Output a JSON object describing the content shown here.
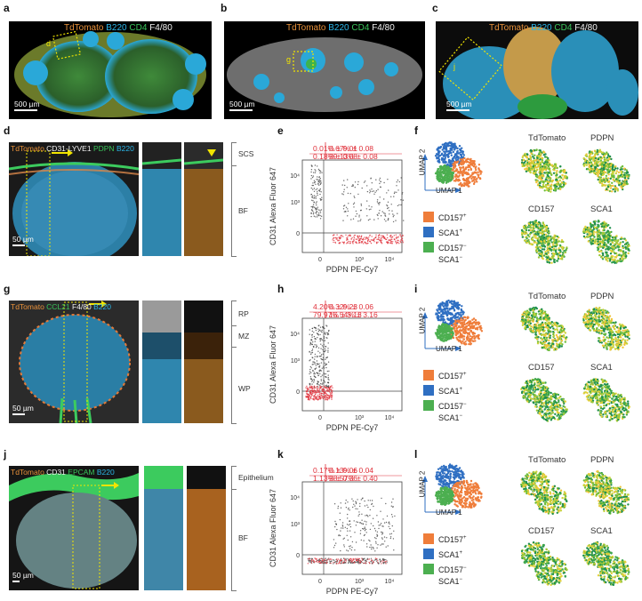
{
  "panels": {
    "a": {
      "label": "a",
      "stain": [
        "TdTomato",
        "B220",
        "CD4",
        "F4/80"
      ],
      "scale": "500 µm",
      "inset": "d"
    },
    "b": {
      "label": "b",
      "stain": [
        "TdTomato",
        "B220",
        "CD4",
        "F4/80"
      ],
      "scale": "500 µm",
      "inset": "g"
    },
    "c": {
      "label": "c",
      "stain": [
        "TdTomato",
        "B220",
        "CD4",
        "F4/80"
      ],
      "scale": "500 µm",
      "inset": "j"
    },
    "d": {
      "label": "d",
      "stain": [
        "TdTomato",
        "CD31-LYVE1",
        "PDPN",
        "B220"
      ],
      "scale": "50 µm",
      "regions": [
        "SCS",
        "BF"
      ]
    },
    "e": {
      "label": "e"
    },
    "f": {
      "label": "f"
    },
    "g": {
      "label": "g",
      "stain": [
        "TdTomato",
        "CCL21",
        "F4/80",
        "B220"
      ],
      "scale": "50 µm",
      "regions": [
        "RP",
        "MZ",
        "WP"
      ]
    },
    "h": {
      "label": "h"
    },
    "i": {
      "label": "i"
    },
    "j": {
      "label": "j",
      "stain": [
        "TdTomato",
        "CD31",
        "EPCAM",
        "B220"
      ],
      "scale": "50 µm",
      "regions": [
        "Epithelium",
        "BF"
      ]
    },
    "k": {
      "label": "k"
    },
    "l": {
      "label": "l"
    }
  },
  "colors": {
    "tdtomato": "#e8913a",
    "b220": "#2bb6e8",
    "green": "#39c45a",
    "white": "#f0f0f0",
    "stat_red": "#e0303a",
    "cd157": "#ef7d3a",
    "sca1": "#2f6fc2",
    "double_neg": "#4caf50"
  },
  "flow": {
    "xlabel": "PDPN PE-Cy7",
    "ylabel": "CD31 Alexa Fluor 647",
    "xticks": [
      "0",
      "10³",
      "10⁴"
    ],
    "yticks": [
      "0",
      "10³",
      "10⁴"
    ],
    "e": {
      "q_tl": "0.01% ± 0.01",
      "q_tr": "0.67% ± 0.08",
      "q_bl": "0.18% ± 0.08",
      "q_br": "99.13% ± 0.08"
    },
    "h": {
      "q_tl": "4.20% ± 0.23",
      "q_tr": "0.32% ± 0.06",
      "q_bl": "79.97% ± 3.13",
      "q_br": "15.54% ± 3.16"
    },
    "k": {
      "q_tl": "0.17% ± 0.06",
      "q_tr": "0.13% ± 0.04",
      "q_bl": "1.13% ± 0.36",
      "q_br": "98.57% ± 0.40"
    }
  },
  "umap": {
    "axis_y": "UMAP 2",
    "axis_x": "UMAP 1",
    "features": [
      "TdTomato",
      "PDPN",
      "CD157",
      "SCA1"
    ],
    "legend": [
      {
        "label": "CD157",
        "sup": "+",
        "label2": "",
        "sup2": "",
        "color": "#ef7d3a"
      },
      {
        "label": "SCA1",
        "sup": "+",
        "label2": "",
        "sup2": "",
        "color": "#2f6fc2"
      },
      {
        "label": "CD157",
        "sup": "−",
        "label2": "SCA1",
        "sup2": "−",
        "color": "#4caf50"
      }
    ]
  }
}
